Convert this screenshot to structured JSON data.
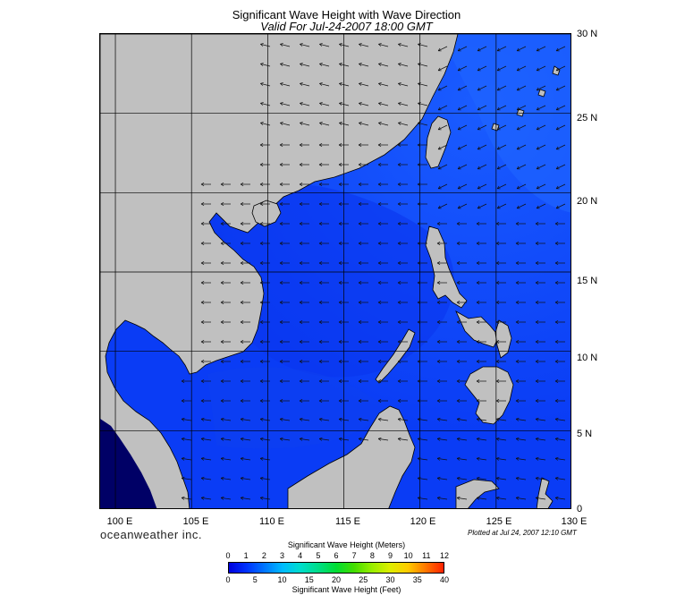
{
  "title": "Significant Wave Height with Wave Direction",
  "subtitle": "Valid For Jul-24-2007 18:00 GMT",
  "lat_labels": [
    "30 N",
    "25 N",
    "20 N",
    "15 N",
    "10 N",
    "5 N",
    "0"
  ],
  "lon_labels": [
    "100 E",
    "105 E",
    "110 E",
    "115 E",
    "120 E",
    "125 E",
    "130 E"
  ],
  "brand": "oceanweather inc.",
  "plotted": "Plotted at Jul 24, 2007 12:10 GMT",
  "colorbar": {
    "meters_title": "Significant Wave Height (Meters)",
    "feet_title": "Significant Wave Height (Feet)",
    "meters_ticks": [
      "0",
      "1",
      "2",
      "3",
      "4",
      "5",
      "6",
      "7",
      "8",
      "9",
      "10",
      "11",
      "12"
    ],
    "feet_ticks": [
      "0",
      "5",
      "10",
      "15",
      "20",
      "25",
      "30",
      "35",
      "40"
    ],
    "colors": [
      "#0000dd",
      "#0033ff",
      "#0077ff",
      "#00bbff",
      "#00ddcc",
      "#00dd88",
      "#00dd33",
      "#44dd00",
      "#99ee00",
      "#ddee00",
      "#ffcc00",
      "#ff7700",
      "#ff2200"
    ]
  },
  "map": {
    "lon_range": [
      99,
      130
    ],
    "lat_range": [
      0,
      30
    ],
    "land_color": "#c0c0c0",
    "sea_color_low": "#0022ee",
    "sea_color_mid": "#0a44ff",
    "deep_low_color": "#000088",
    "arrow_direction": "westward (northeast monsoon swell)"
  }
}
